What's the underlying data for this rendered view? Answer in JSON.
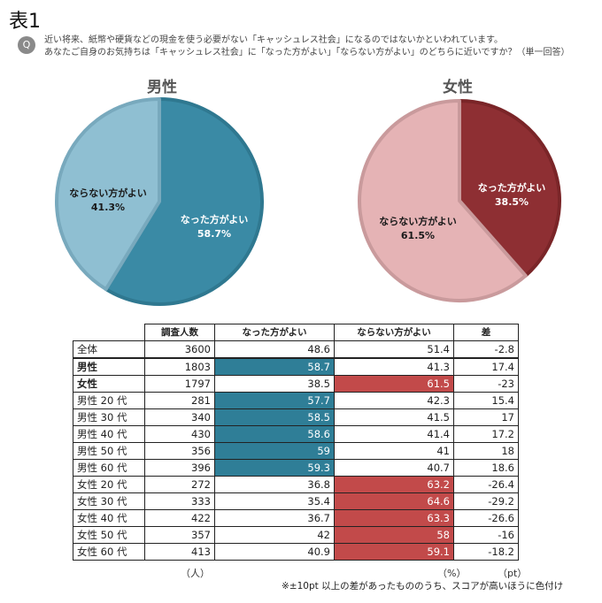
{
  "title": "表1",
  "question": {
    "icon": "Q",
    "line1": "近い将来、紙幣や硬貨などの現金を使う必要がない「キャッシュレス社会」になるのではないかといわれています。",
    "line2": "あなたご自身のお気持ちは「キャッシュレス社会」に「なった方がよい」「ならない方がよい」のどちらに近いですか？（単一回答）"
  },
  "chart_data": [
    {
      "type": "pie",
      "title": "男性",
      "slices": [
        {
          "label": "なった方がよい",
          "value": 58.7,
          "display": "58.7%",
          "color": "#3a8aa5"
        },
        {
          "label": "ならない方がよい",
          "value": 41.3,
          "display": "41.3%",
          "color": "#8fbfd2"
        }
      ]
    },
    {
      "type": "pie",
      "title": "女性",
      "slices": [
        {
          "label": "なった方がよい",
          "value": 38.5,
          "display": "38.5%",
          "color": "#8e2f33"
        },
        {
          "label": "ならない方がよい",
          "value": 61.5,
          "display": "61.5%",
          "color": "#e5b3b5"
        }
      ]
    },
    {
      "type": "table",
      "headers": [
        "",
        "調査人数",
        "なった方がよい",
        "ならない方がよい",
        "差"
      ],
      "rows": [
        {
          "label": "全体",
          "n": "3600",
          "good": "48.6",
          "bad": "51.4",
          "diff": "-2.8",
          "hl": ""
        },
        {
          "label": "男性",
          "n": "1803",
          "good": "58.7",
          "bad": "41.3",
          "diff": "17.4",
          "hl": "good",
          "bold": true
        },
        {
          "label": "女性",
          "n": "1797",
          "good": "38.5",
          "bad": "61.5",
          "diff": "-23",
          "hl": "bad",
          "bold": true
        },
        {
          "label": "男性 20 代",
          "n": "281",
          "good": "57.7",
          "bad": "42.3",
          "diff": "15.4",
          "hl": "good"
        },
        {
          "label": "男性 30 代",
          "n": "340",
          "good": "58.5",
          "bad": "41.5",
          "diff": "17",
          "hl": "good"
        },
        {
          "label": "男性 40 代",
          "n": "430",
          "good": "58.6",
          "bad": "41.4",
          "diff": "17.2",
          "hl": "good"
        },
        {
          "label": "男性 50 代",
          "n": "356",
          "good": "59",
          "bad": "41",
          "diff": "18",
          "hl": "good"
        },
        {
          "label": "男性 60 代",
          "n": "396",
          "good": "59.3",
          "bad": "40.7",
          "diff": "18.6",
          "hl": "good"
        },
        {
          "label": "女性 20 代",
          "n": "272",
          "good": "36.8",
          "bad": "63.2",
          "diff": "-26.4",
          "hl": "bad"
        },
        {
          "label": "女性 30 代",
          "n": "333",
          "good": "35.4",
          "bad": "64.6",
          "diff": "-29.2",
          "hl": "bad"
        },
        {
          "label": "女性 40 代",
          "n": "422",
          "good": "36.7",
          "bad": "63.3",
          "diff": "-26.6",
          "hl": "bad"
        },
        {
          "label": "女性 50 代",
          "n": "357",
          "good": "42",
          "bad": "58",
          "diff": "-16",
          "hl": "bad"
        },
        {
          "label": "女性 60 代",
          "n": "413",
          "good": "40.9",
          "bad": "59.1",
          "diff": "-18.2",
          "hl": "bad"
        }
      ],
      "units": {
        "n": "（人）",
        "pct": "（%）",
        "pt": "（pt）"
      },
      "note": "※±10pt 以上の差があったもののうち、スコアが高いほうに色付け",
      "highlight_colors": {
        "good": "#2f7e97",
        "bad": "#c24a4a"
      }
    }
  ]
}
